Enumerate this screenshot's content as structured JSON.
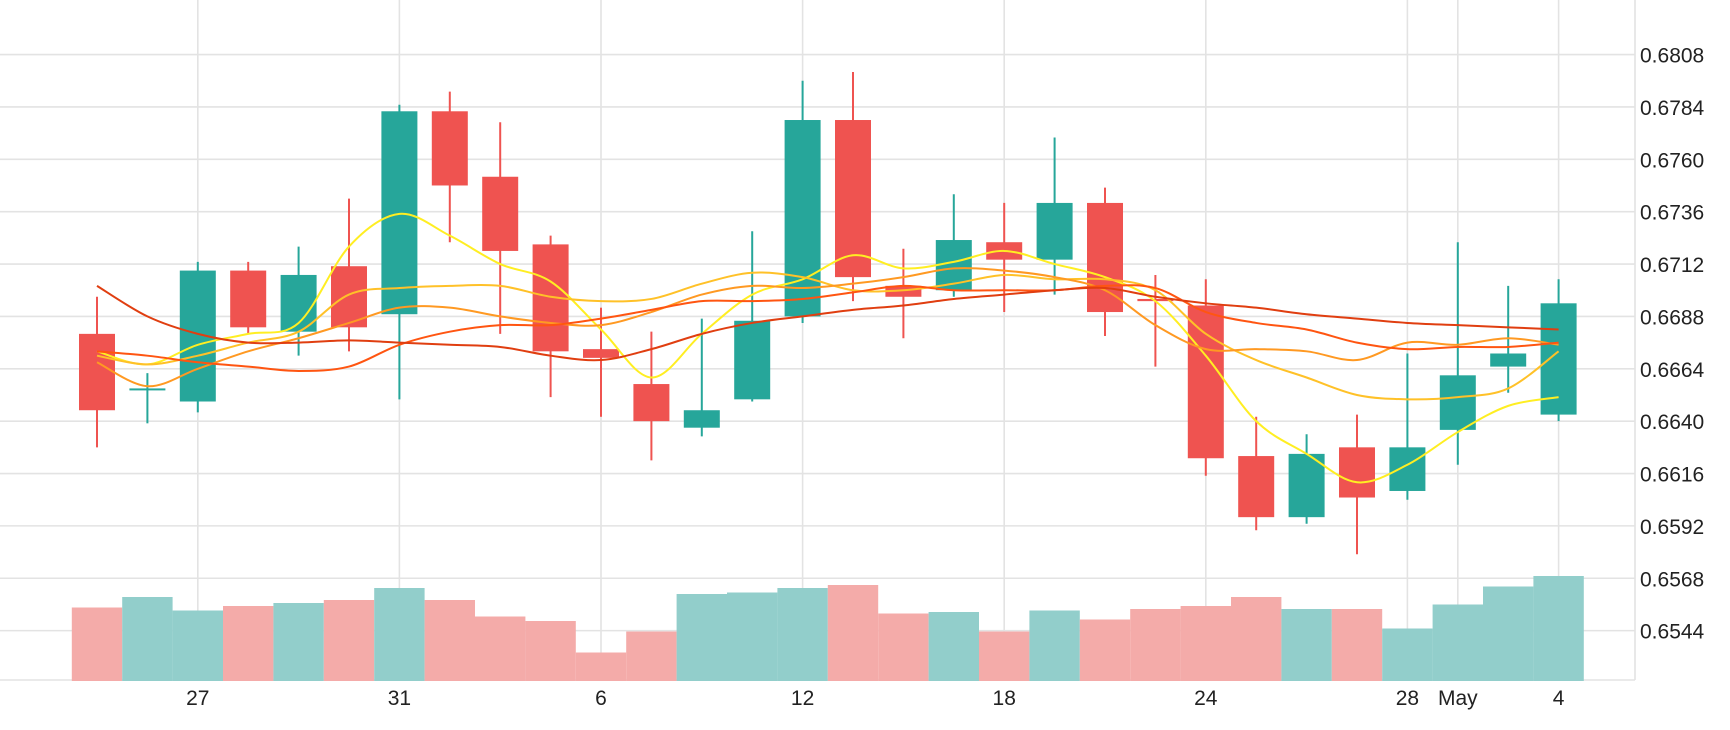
{
  "chart_data": {
    "type": "candlestick",
    "x_tick_labels": [
      "27",
      "31",
      "6",
      "12",
      "18",
      "24",
      "28",
      "May",
      "4"
    ],
    "x_tick_index": [
      2,
      6,
      10,
      14,
      18,
      22,
      26,
      27,
      29
    ],
    "y_ticks": [
      0.6544,
      0.6568,
      0.6592,
      0.6616,
      0.664,
      0.6664,
      0.6688,
      0.6712,
      0.6736,
      0.676,
      0.6784,
      0.6808
    ],
    "y_tick_labels": [
      "0.6544",
      "0.6568",
      "0.6592",
      "0.6616",
      "0.6640",
      "0.6664",
      "0.6688",
      "0.6712",
      "0.6736",
      "0.6760",
      "0.6784",
      "0.6808"
    ],
    "ylim": [
      0.652,
      0.6822
    ],
    "volume_scale_max": 100,
    "colors": {
      "up": "#26a69a",
      "down": "#ef5350",
      "up_volume": "#92cecb",
      "down_volume": "#f4aba9",
      "grid": "#e3e3e3",
      "ma_lines": [
        "#ffee22",
        "#ffc128",
        "#ff9922",
        "#ff5511",
        "#e03e10"
      ]
    },
    "candles": [
      {
        "open": 0.668,
        "high": 0.6697,
        "low": 0.6628,
        "close": 0.6645,
        "volume": 49
      },
      {
        "open": 0.6655,
        "high": 0.6662,
        "low": 0.6639,
        "close": 0.6655,
        "volume": 56
      },
      {
        "open": 0.6649,
        "high": 0.6713,
        "low": 0.6644,
        "close": 0.6709,
        "volume": 47
      },
      {
        "open": 0.6709,
        "high": 0.6713,
        "low": 0.668,
        "close": 0.6683,
        "volume": 50
      },
      {
        "open": 0.6681,
        "high": 0.672,
        "low": 0.667,
        "close": 0.6707,
        "volume": 52
      },
      {
        "open": 0.6711,
        "high": 0.6742,
        "low": 0.6672,
        "close": 0.6683,
        "volume": 54
      },
      {
        "open": 0.6689,
        "high": 0.6785,
        "low": 0.665,
        "close": 0.6782,
        "volume": 62
      },
      {
        "open": 0.6782,
        "high": 0.6791,
        "low": 0.6722,
        "close": 0.6748,
        "volume": 54
      },
      {
        "open": 0.6752,
        "high": 0.6777,
        "low": 0.668,
        "close": 0.6718,
        "volume": 43
      },
      {
        "open": 0.6721,
        "high": 0.6725,
        "low": 0.6651,
        "close": 0.6672,
        "volume": 40
      },
      {
        "open": 0.6673,
        "high": 0.6692,
        "low": 0.6642,
        "close": 0.6669,
        "volume": 19
      },
      {
        "open": 0.6657,
        "high": 0.6681,
        "low": 0.6622,
        "close": 0.664,
        "volume": 33
      },
      {
        "open": 0.6637,
        "high": 0.6687,
        "low": 0.6633,
        "close": 0.6645,
        "volume": 58
      },
      {
        "open": 0.665,
        "high": 0.6727,
        "low": 0.6649,
        "close": 0.6686,
        "volume": 59
      },
      {
        "open": 0.6688,
        "high": 0.6796,
        "low": 0.6685,
        "close": 0.6778,
        "volume": 62
      },
      {
        "open": 0.6778,
        "high": 0.68,
        "low": 0.6695,
        "close": 0.6706,
        "volume": 64
      },
      {
        "open": 0.6702,
        "high": 0.6719,
        "low": 0.6678,
        "close": 0.6697,
        "volume": 45
      },
      {
        "open": 0.67,
        "high": 0.6744,
        "low": 0.6697,
        "close": 0.6723,
        "volume": 46
      },
      {
        "open": 0.6722,
        "high": 0.674,
        "low": 0.669,
        "close": 0.6714,
        "volume": 33
      },
      {
        "open": 0.6714,
        "high": 0.677,
        "low": 0.6698,
        "close": 0.674,
        "volume": 47
      },
      {
        "open": 0.674,
        "high": 0.6747,
        "low": 0.6679,
        "close": 0.669,
        "volume": 41
      },
      {
        "open": 0.6696,
        "high": 0.6707,
        "low": 0.6665,
        "close": 0.6695,
        "volume": 48
      },
      {
        "open": 0.6693,
        "high": 0.6705,
        "low": 0.6615,
        "close": 0.6623,
        "volume": 50
      },
      {
        "open": 0.6624,
        "high": 0.6642,
        "low": 0.659,
        "close": 0.6596,
        "volume": 56
      },
      {
        "open": 0.6596,
        "high": 0.6634,
        "low": 0.6593,
        "close": 0.6625,
        "volume": 48
      },
      {
        "open": 0.6628,
        "high": 0.6643,
        "low": 0.6579,
        "close": 0.6605,
        "volume": 48
      },
      {
        "open": 0.6608,
        "high": 0.6671,
        "low": 0.6604,
        "close": 0.6628,
        "volume": 35
      },
      {
        "open": 0.6636,
        "high": 0.6722,
        "low": 0.662,
        "close": 0.6661,
        "volume": 51
      },
      {
        "open": 0.6665,
        "high": 0.6702,
        "low": 0.6653,
        "close": 0.6671,
        "volume": 63
      },
      {
        "open": 0.6643,
        "high": 0.6705,
        "low": 0.664,
        "close": 0.6694,
        "volume": 70
      }
    ],
    "moving_averages": [
      {
        "values": [
          0.6672,
          0.6666,
          0.6675,
          0.668,
          0.6685,
          0.672,
          0.6735,
          0.6725,
          0.6712,
          0.6704,
          0.6682,
          0.666,
          0.668,
          0.6698,
          0.6705,
          0.6716,
          0.671,
          0.6713,
          0.6718,
          0.6712,
          0.6706,
          0.6695,
          0.667,
          0.664,
          0.6625,
          0.6612,
          0.662,
          0.6635,
          0.6647,
          0.6651
        ]
      },
      {
        "values": [
          0.667,
          0.6666,
          0.667,
          0.6676,
          0.6681,
          0.6698,
          0.6701,
          0.6702,
          0.6702,
          0.6697,
          0.6695,
          0.6696,
          0.6703,
          0.6708,
          0.6706,
          0.67,
          0.67,
          0.6703,
          0.6707,
          0.6705,
          0.6705,
          0.67,
          0.668,
          0.6668,
          0.666,
          0.6652,
          0.665,
          0.6651,
          0.6655,
          0.6672
        ]
      },
      {
        "values": [
          0.6667,
          0.6656,
          0.6664,
          0.6672,
          0.6678,
          0.6685,
          0.6692,
          0.6692,
          0.6688,
          0.6685,
          0.6684,
          0.669,
          0.6698,
          0.6702,
          0.6701,
          0.6703,
          0.6706,
          0.671,
          0.6709,
          0.6706,
          0.67,
          0.6684,
          0.6673,
          0.6673,
          0.6672,
          0.6668,
          0.6676,
          0.6675,
          0.6678,
          0.6675
        ]
      },
      {
        "values": [
          0.6672,
          0.667,
          0.6667,
          0.6665,
          0.6663,
          0.6665,
          0.6675,
          0.6681,
          0.6684,
          0.6684,
          0.6687,
          0.6691,
          0.6695,
          0.6695,
          0.6696,
          0.6699,
          0.6702,
          0.67,
          0.67,
          0.67,
          0.6702,
          0.6701,
          0.669,
          0.6685,
          0.6682,
          0.6676,
          0.6673,
          0.6674,
          0.6674,
          0.6676
        ]
      },
      {
        "values": [
          0.6702,
          0.6688,
          0.668,
          0.6676,
          0.6676,
          0.6677,
          0.6676,
          0.6675,
          0.6674,
          0.667,
          0.6668,
          0.6673,
          0.668,
          0.6685,
          0.6688,
          0.6691,
          0.6693,
          0.6696,
          0.6698,
          0.67,
          0.6701,
          0.6697,
          0.6694,
          0.6692,
          0.6689,
          0.6687,
          0.6685,
          0.6684,
          0.6683,
          0.6682
        ]
      }
    ]
  }
}
